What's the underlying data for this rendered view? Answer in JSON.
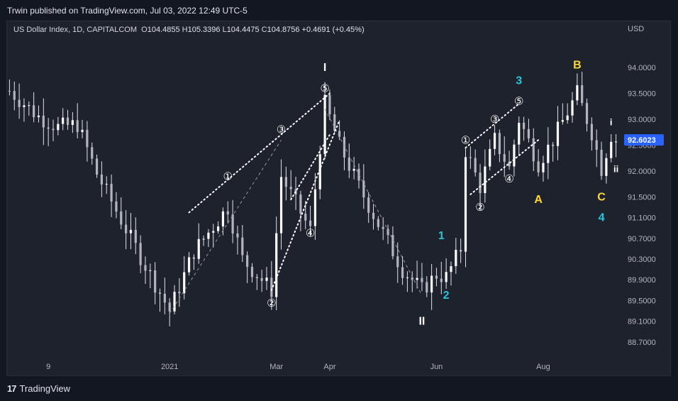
{
  "header": {
    "published_line": "Trwin published on TradingView.com, Jul 03, 2022 12:49 UTC-5"
  },
  "legend": {
    "symbol": "US Dollar Index, 1D, CAPITALCOM",
    "o_label": "O",
    "o_value": "104.4855",
    "h_label": "H",
    "h_value": "105.3396",
    "l_label": "L",
    "l_value": "104.4475",
    "c_label": "C",
    "c_value": "104.8756",
    "change": "+0.4691 (+0.45%)"
  },
  "footer": {
    "brand": "TradingView"
  },
  "chart_data": {
    "type": "candlestick",
    "currency": "USD",
    "y_ticks": [
      "94.0000",
      "93.5000",
      "93.0000",
      "92.5000",
      "92.0000",
      "91.5000",
      "91.1000",
      "90.7000",
      "90.3000",
      "89.9000",
      "89.5000",
      "89.1000",
      "88.7000"
    ],
    "y_tick_values": [
      94.0,
      93.5,
      93.0,
      92.5,
      92.0,
      91.5,
      91.1,
      90.7,
      90.3,
      89.9,
      89.5,
      89.1,
      88.7
    ],
    "ylim": [
      88.45,
      94.55
    ],
    "x_ticks": [
      "9",
      "2021",
      "Mar",
      "Apr",
      "Jun",
      "Aug"
    ],
    "x_tick_positions": [
      8,
      33,
      55,
      66,
      88,
      110
    ],
    "bar_count": 126,
    "last_price": "92.6023",
    "accent_color": "#2962ff",
    "wave_labels": [
      {
        "text": "I",
        "bar": 65,
        "price": 94.0,
        "color": "#ffffff"
      },
      {
        "text": "II",
        "bar": 85,
        "price": 89.1,
        "color": "#ffffff"
      },
      {
        "text": "1",
        "bar": 89,
        "price": 90.75,
        "color": "#26c6da"
      },
      {
        "text": "2",
        "bar": 90,
        "price": 89.6,
        "color": "#26c6da"
      },
      {
        "text": "3",
        "bar": 105,
        "price": 93.75,
        "color": "#26c6da"
      },
      {
        "text": "4",
        "bar": 122,
        "price": 91.1,
        "color": "#26c6da"
      },
      {
        "text": "A",
        "bar": 109,
        "price": 91.45,
        "color": "#fdd835"
      },
      {
        "text": "B",
        "bar": 117,
        "price": 94.05,
        "color": "#fdd835"
      },
      {
        "text": "C",
        "bar": 122,
        "price": 91.5,
        "color": "#fdd835"
      },
      {
        "text": "i",
        "bar": 124,
        "price": 92.95,
        "color": "#ffffff"
      },
      {
        "text": "ii",
        "bar": 125,
        "price": 92.05,
        "color": "#ffffff"
      }
    ],
    "circled_labels": [
      {
        "text": "①",
        "bar": 45,
        "price": 91.9
      },
      {
        "text": "②",
        "bar": 54,
        "price": 89.45
      },
      {
        "text": "③",
        "bar": 56,
        "price": 92.8
      },
      {
        "text": "④",
        "bar": 62,
        "price": 90.8
      },
      {
        "text": "⑤",
        "bar": 65,
        "price": 93.6
      },
      {
        "text": "①",
        "bar": 94,
        "price": 92.6
      },
      {
        "text": "②",
        "bar": 97,
        "price": 91.3
      },
      {
        "text": "③",
        "bar": 100,
        "price": 93.0
      },
      {
        "text": "④",
        "bar": 103,
        "price": 91.85
      },
      {
        "text": "⑤",
        "bar": 105,
        "price": 93.35
      }
    ]
  }
}
